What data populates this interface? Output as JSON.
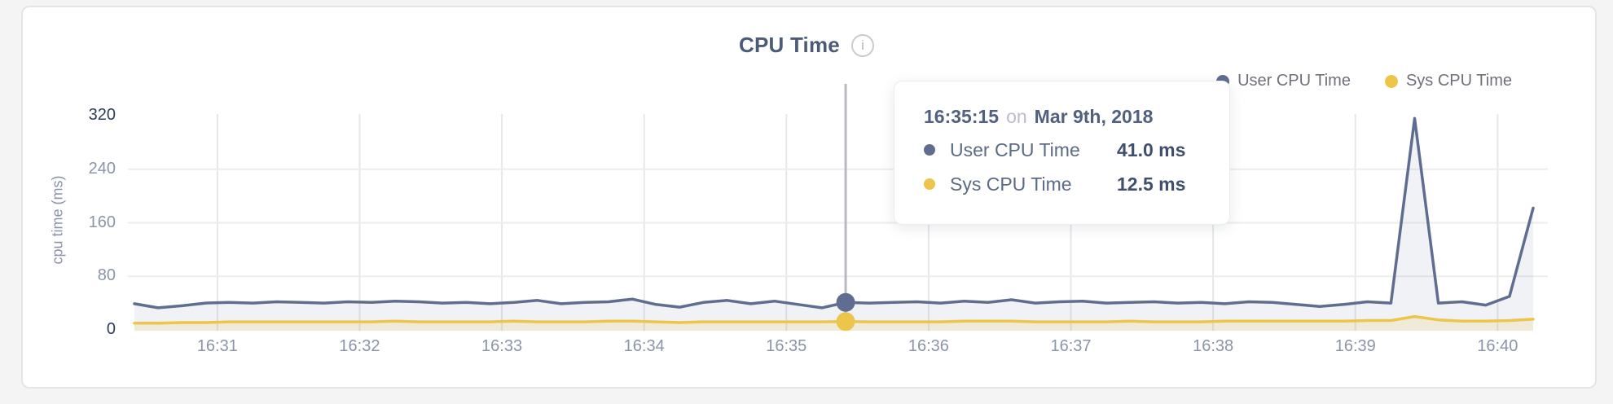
{
  "page": {
    "background": "#f4f4f4",
    "card_background": "#ffffff"
  },
  "header": {
    "title": "CPU Time",
    "info_icon_glyph": "i"
  },
  "legend": {
    "items": [
      {
        "label": "User CPU Time",
        "color": "#5f6e90"
      },
      {
        "label": "Sys CPU Time",
        "color": "#eec54b"
      }
    ]
  },
  "tooltip": {
    "time": "16:35:15",
    "connector": "on",
    "date": "Mar 9th, 2018",
    "rows": [
      {
        "label": "User CPU Time",
        "value": "41.0 ms",
        "color": "#5f6e90"
      },
      {
        "label": "Sys CPU Time",
        "value": "12.5 ms",
        "color": "#eec54b"
      }
    ]
  },
  "chart_data": {
    "type": "line",
    "title": "CPU Time",
    "ylabel": "cpu time (ms)",
    "unit": "ms",
    "ylim": [
      0,
      320
    ],
    "y_ticks": [
      0,
      80,
      160,
      240,
      320
    ],
    "x_tick_labels": [
      "16:31",
      "16:32",
      "16:33",
      "16:34",
      "16:35",
      "16:36",
      "16:37",
      "16:38",
      "16:39",
      "16:40"
    ],
    "x_range": [
      "16:30:25",
      "16:40:15"
    ],
    "start_time": "16:30:25",
    "interval_seconds": 10,
    "grid": true,
    "legend_position": "top-right",
    "colors": {
      "gridline_vertical": "#e7e7e9",
      "gridline_horizontal": "#ededee",
      "crosshair": "#b7babf",
      "tick_label": "#8c94a8",
      "tick_label_endpoint": "#2d3c5d"
    },
    "series": [
      {
        "name": "User CPU Time",
        "color": "#5f6e90",
        "area_opacity": 0.09,
        "values": [
          39,
          33,
          36,
          40,
          41,
          40,
          42,
          41,
          40,
          42,
          41,
          43,
          42,
          40,
          41,
          39,
          41,
          44,
          39,
          41,
          42,
          46,
          38,
          34,
          41,
          44,
          39,
          43,
          38,
          33,
          41,
          40,
          41,
          42,
          40,
          43,
          41,
          45,
          40,
          42,
          43,
          40,
          41,
          42,
          40,
          41,
          39,
          42,
          41,
          38,
          35,
          38,
          42,
          40,
          316,
          40,
          42,
          37,
          50,
          182
        ]
      },
      {
        "name": "Sys CPU Time",
        "color": "#eec54b",
        "area_opacity": 0.16,
        "values": [
          10,
          10,
          11,
          11,
          12,
          12,
          12,
          12,
          12,
          12,
          12,
          13,
          12,
          12,
          12,
          12,
          13,
          12,
          12,
          12,
          13,
          13,
          12,
          11,
          12,
          12,
          12,
          12,
          12,
          12,
          12.5,
          12,
          12,
          12,
          12,
          13,
          13,
          13,
          12,
          12,
          12,
          12,
          13,
          12,
          12,
          12,
          13,
          13,
          13,
          13,
          13,
          13,
          14,
          14,
          20,
          15,
          13,
          13,
          14,
          16
        ]
      }
    ],
    "highlight": {
      "index": 30,
      "time": "16:35:15",
      "values": [
        {
          "series": "User CPU Time",
          "value_ms": 41.0
        },
        {
          "series": "Sys CPU Time",
          "value_ms": 12.5
        }
      ]
    }
  }
}
